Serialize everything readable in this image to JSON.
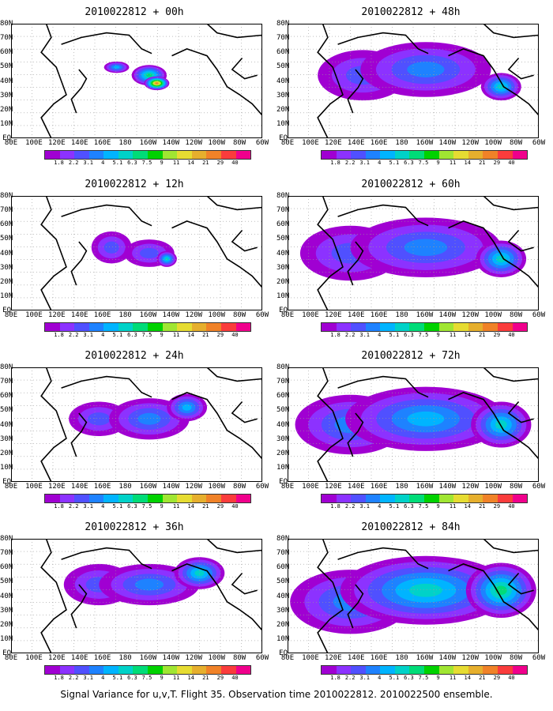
{
  "caption": "Signal Variance for u,v,T. Flight 35. Observation time 2010022812. 2010022500 ensemble.",
  "panels": [
    {
      "title": "2010022812 + 00h",
      "intensity": 1,
      "blobs": [
        [
          0.42,
          0.38,
          0.05,
          0.05,
          4
        ],
        [
          0.55,
          0.45,
          0.07,
          0.09,
          6
        ],
        [
          0.58,
          0.52,
          0.05,
          0.06,
          11
        ]
      ]
    },
    {
      "title": "2010022812 + 12h",
      "intensity": 2,
      "blobs": [
        [
          0.4,
          0.45,
          0.08,
          0.14,
          2
        ],
        [
          0.55,
          0.5,
          0.1,
          0.12,
          2
        ],
        [
          0.62,
          0.55,
          0.04,
          0.07,
          5
        ]
      ]
    },
    {
      "title": "2010022812 + 24h",
      "intensity": 3,
      "blobs": [
        [
          0.35,
          0.45,
          0.12,
          0.15,
          2
        ],
        [
          0.55,
          0.45,
          0.16,
          0.18,
          3
        ],
        [
          0.7,
          0.35,
          0.08,
          0.12,
          4
        ]
      ]
    },
    {
      "title": "2010022812 + 36h",
      "intensity": 4,
      "blobs": [
        [
          0.35,
          0.4,
          0.14,
          0.18,
          2
        ],
        [
          0.55,
          0.4,
          0.2,
          0.18,
          3
        ],
        [
          0.75,
          0.3,
          0.1,
          0.14,
          5
        ]
      ]
    },
    {
      "title": "2010022812 + 48h",
      "intensity": 5,
      "blobs": [
        [
          0.3,
          0.45,
          0.18,
          0.22,
          2
        ],
        [
          0.55,
          0.4,
          0.26,
          0.24,
          3
        ],
        [
          0.85,
          0.55,
          0.08,
          0.12,
          5
        ]
      ]
    },
    {
      "title": "2010022812 + 60h",
      "intensity": 6,
      "blobs": [
        [
          0.25,
          0.5,
          0.2,
          0.24,
          2
        ],
        [
          0.55,
          0.45,
          0.3,
          0.26,
          3
        ],
        [
          0.85,
          0.55,
          0.1,
          0.16,
          5
        ]
      ]
    },
    {
      "title": "2010022812 + 72h",
      "intensity": 7,
      "blobs": [
        [
          0.25,
          0.5,
          0.22,
          0.26,
          3
        ],
        [
          0.55,
          0.45,
          0.32,
          0.28,
          4
        ],
        [
          0.85,
          0.5,
          0.12,
          0.2,
          5
        ]
      ]
    },
    {
      "title": "2010022812 + 84h",
      "intensity": 8,
      "blobs": [
        [
          0.25,
          0.55,
          0.24,
          0.28,
          3
        ],
        [
          0.55,
          0.45,
          0.34,
          0.3,
          5
        ],
        [
          0.85,
          0.45,
          0.14,
          0.24,
          6
        ]
      ]
    }
  ],
  "ylabels": [
    "80N",
    "70N",
    "60N",
    "50N",
    "40N",
    "30N",
    "20N",
    "10N",
    "EQ"
  ],
  "xlabels": [
    "80E",
    "100E",
    "120E",
    "140E",
    "160E",
    "180",
    "160W",
    "140W",
    "120W",
    "100W",
    "80W",
    "60W"
  ],
  "colorbar": {
    "labels": [
      "1.8",
      "2.2",
      "3.1",
      "4",
      "5.1",
      "6.3",
      "7.5",
      "9",
      "11",
      "14",
      "21",
      "29",
      "40"
    ],
    "colors": [
      "#a000d2",
      "#8c32ff",
      "#5050ff",
      "#1e82ff",
      "#00b4ff",
      "#00d2c8",
      "#00dc78",
      "#00d200",
      "#a0e632",
      "#e6dc32",
      "#e6af2d",
      "#f08228",
      "#fa3c3c",
      "#f0008c"
    ]
  }
}
